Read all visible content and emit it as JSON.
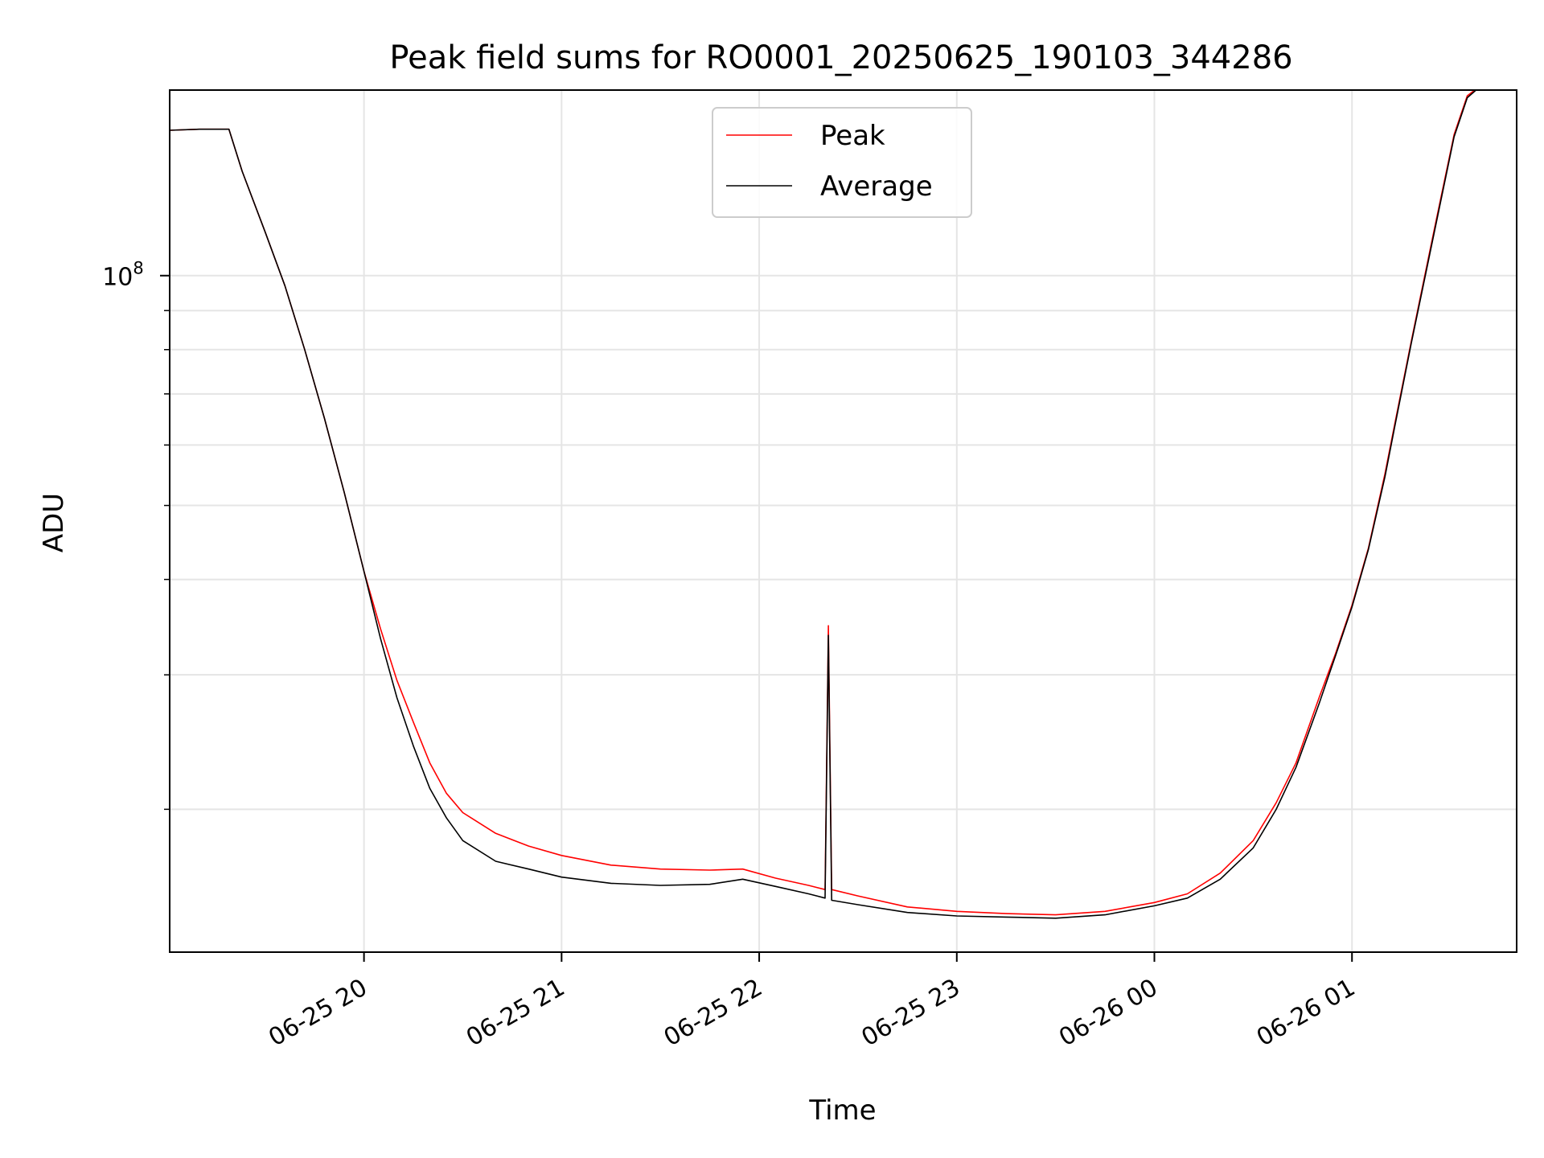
{
  "chart_data": {
    "type": "line",
    "title": "Peak field sums for RO0001_20250625_190103_344286",
    "xlabel": "Time",
    "ylabel": "ADU",
    "yscale": "log",
    "ylim": [
      13000000,
      175000000
    ],
    "xlim": [
      "06-25 19:01",
      "06-26 01:50"
    ],
    "grid": true,
    "legend_position": "top-center",
    "x_ticks": [
      "06-25 20",
      "06-25 21",
      "06-25 22",
      "06-25 23",
      "06-26 00",
      "06-26 01"
    ],
    "y_major_ticks": [
      {
        "value": 100000000,
        "label_base": "10",
        "label_exp": "8"
      }
    ],
    "series": [
      {
        "name": "Peak",
        "color": "#ff0000",
        "points": [
          [
            "06-25 19:01",
            155000000
          ],
          [
            "06-25 19:10",
            155500000
          ],
          [
            "06-25 19:19",
            155500000
          ],
          [
            "06-25 19:23",
            137000000
          ],
          [
            "06-25 19:30",
            114000000
          ],
          [
            "06-25 19:36",
            97000000
          ],
          [
            "06-25 19:42",
            80000000
          ],
          [
            "06-25 19:48",
            65000000
          ],
          [
            "06-25 19:54",
            52000000
          ],
          [
            "06-25 20:00",
            41000000
          ],
          [
            "06-25 20:05",
            34500000
          ],
          [
            "06-25 20:10",
            29500000
          ],
          [
            "06-25 20:15",
            26000000
          ],
          [
            "06-25 20:20",
            23000000
          ],
          [
            "06-25 20:25",
            21000000
          ],
          [
            "06-25 20:30",
            19800000
          ],
          [
            "06-25 20:40",
            18600000
          ],
          [
            "06-25 20:50",
            17900000
          ],
          [
            "06-25 21:00",
            17400000
          ],
          [
            "06-25 21:15",
            16900000
          ],
          [
            "06-25 21:30",
            16700000
          ],
          [
            "06-25 21:45",
            16650000
          ],
          [
            "06-25 21:55",
            16700000
          ],
          [
            "06-25 22:05",
            16250000
          ],
          [
            "06-25 22:15",
            15900000
          ],
          [
            "06-25 22:20",
            15700000
          ],
          [
            "06-25 22:21",
            34800000
          ],
          [
            "06-25 22:22",
            15700000
          ],
          [
            "06-25 22:30",
            15400000
          ],
          [
            "06-25 22:45",
            14900000
          ],
          [
            "06-25 23:00",
            14700000
          ],
          [
            "06-25 23:15",
            14600000
          ],
          [
            "06-25 23:30",
            14550000
          ],
          [
            "06-25 23:45",
            14700000
          ],
          [
            "06-26 00:00",
            15100000
          ],
          [
            "06-26 00:10",
            15500000
          ],
          [
            "06-26 00:20",
            16500000
          ],
          [
            "06-26 00:30",
            18200000
          ],
          [
            "06-26 00:37",
            20400000
          ],
          [
            "06-26 00:43",
            23000000
          ],
          [
            "06-26 00:50",
            28000000
          ],
          [
            "06-26 00:55",
            32000000
          ],
          [
            "06-26 01:00",
            37000000
          ],
          [
            "06-26 01:05",
            44000000
          ],
          [
            "06-26 01:10",
            55000000
          ],
          [
            "06-26 01:13",
            64000000
          ],
          [
            "06-26 01:18",
            82000000
          ],
          [
            "06-26 01:25",
            115000000
          ],
          [
            "06-26 01:31",
            153000000
          ],
          [
            "06-26 01:35",
            172000000
          ],
          [
            "06-26 01:38",
            176000000
          ],
          [
            "06-26 01:50",
            176000000
          ]
        ]
      },
      {
        "name": "Average",
        "color": "#000000",
        "points": [
          [
            "06-25 19:01",
            155000000
          ],
          [
            "06-25 19:10",
            155500000
          ],
          [
            "06-25 19:19",
            155500000
          ],
          [
            "06-25 19:23",
            137000000
          ],
          [
            "06-25 19:30",
            114000000
          ],
          [
            "06-25 19:36",
            97000000
          ],
          [
            "06-25 19:42",
            80000000
          ],
          [
            "06-25 19:48",
            65000000
          ],
          [
            "06-25 19:54",
            52000000
          ],
          [
            "06-25 20:00",
            41000000
          ],
          [
            "06-25 20:05",
            33500000
          ],
          [
            "06-25 20:10",
            28000000
          ],
          [
            "06-25 20:15",
            24200000
          ],
          [
            "06-25 20:20",
            21300000
          ],
          [
            "06-25 20:25",
            19500000
          ],
          [
            "06-25 20:30",
            18200000
          ],
          [
            "06-25 20:40",
            17100000
          ],
          [
            "06-25 20:50",
            16700000
          ],
          [
            "06-25 21:00",
            16300000
          ],
          [
            "06-25 21:15",
            16000000
          ],
          [
            "06-25 21:30",
            15900000
          ],
          [
            "06-25 21:45",
            15950000
          ],
          [
            "06-25 21:55",
            16200000
          ],
          [
            "06-25 22:05",
            15850000
          ],
          [
            "06-25 22:15",
            15500000
          ],
          [
            "06-25 22:20",
            15300000
          ],
          [
            "06-25 22:21",
            33800000
          ],
          [
            "06-25 22:22",
            15200000
          ],
          [
            "06-25 22:30",
            15000000
          ],
          [
            "06-25 22:45",
            14650000
          ],
          [
            "06-25 23:00",
            14500000
          ],
          [
            "06-25 23:15",
            14450000
          ],
          [
            "06-25 23:30",
            14400000
          ],
          [
            "06-25 23:45",
            14550000
          ],
          [
            "06-26 00:00",
            14950000
          ],
          [
            "06-26 00:10",
            15300000
          ],
          [
            "06-26 00:20",
            16200000
          ],
          [
            "06-26 00:30",
            17800000
          ],
          [
            "06-26 00:37",
            20000000
          ],
          [
            "06-26 00:43",
            22700000
          ],
          [
            "06-26 00:50",
            27500000
          ],
          [
            "06-26 00:55",
            31800000
          ],
          [
            "06-26 01:00",
            36800000
          ],
          [
            "06-26 01:05",
            43800000
          ],
          [
            "06-26 01:10",
            54500000
          ],
          [
            "06-26 01:13",
            63500000
          ],
          [
            "06-26 01:18",
            81500000
          ],
          [
            "06-26 01:25",
            114000000
          ],
          [
            "06-26 01:31",
            152000000
          ],
          [
            "06-26 01:35",
            171000000
          ],
          [
            "06-26 01:38",
            175500000
          ],
          [
            "06-26 01:50",
            175500000
          ]
        ]
      }
    ]
  }
}
